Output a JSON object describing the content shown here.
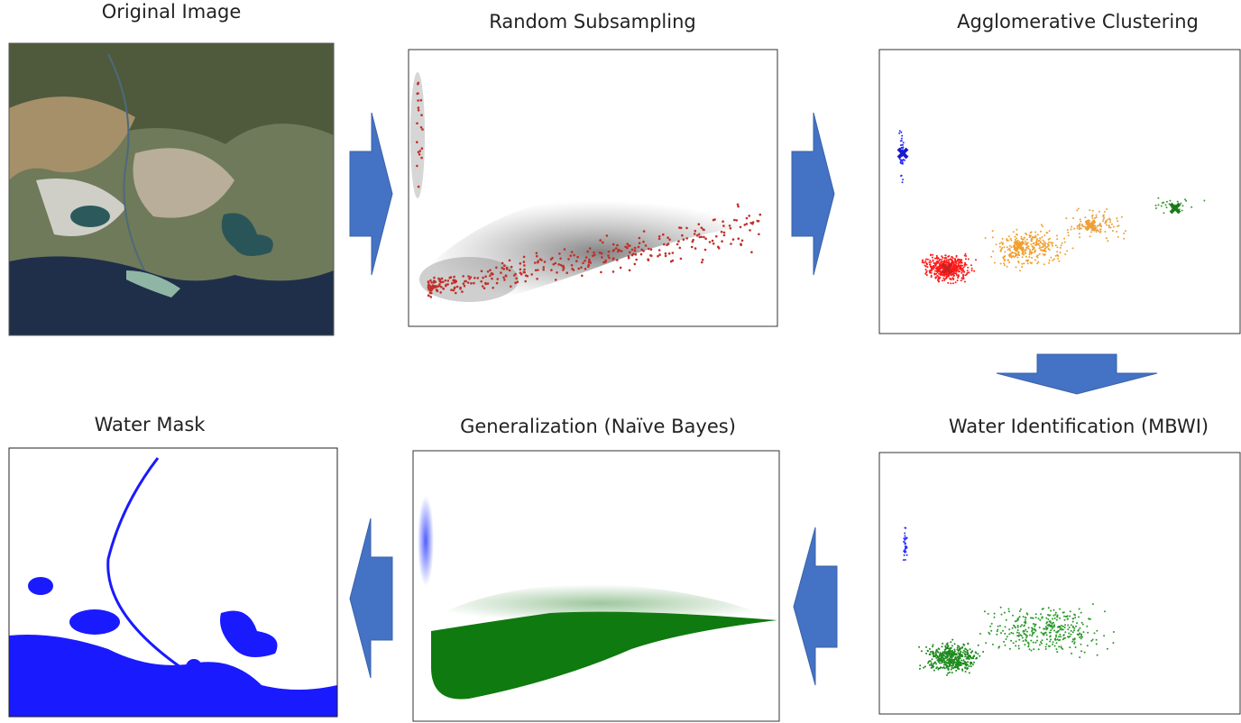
{
  "panels": [
    {
      "title": "Original Image"
    },
    {
      "title": "Random Subsampling"
    },
    {
      "title": "Agglomerative Clustering"
    },
    {
      "title": "Water Mask"
    },
    {
      "title": "Generalization (Naïve Bayes)"
    },
    {
      "title": "Water Identification (MBWI)"
    }
  ]
}
